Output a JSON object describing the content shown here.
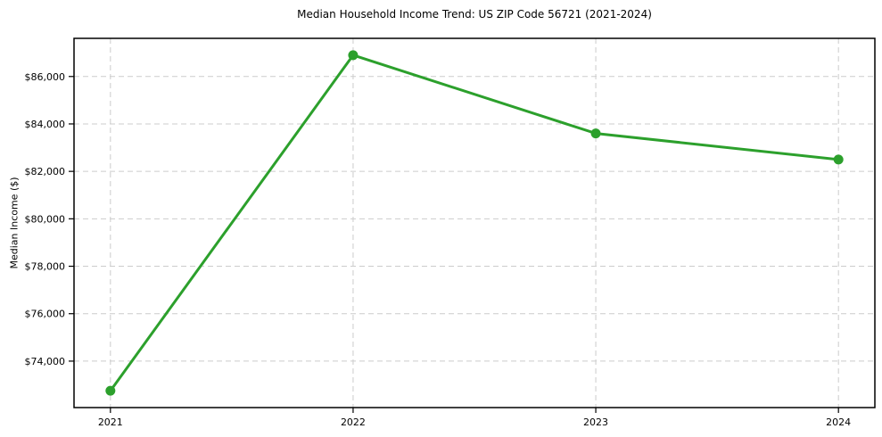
{
  "chart_data": {
    "type": "line",
    "title": "Median Household Income Trend: US ZIP Code 56721 (2021-2024)",
    "xlabel": "",
    "ylabel": "Median Income ($)",
    "x": [
      2021,
      2022,
      2023,
      2024
    ],
    "x_tick_labels": [
      "2021",
      "2022",
      "2023",
      "2024"
    ],
    "series": [
      {
        "name": "Median Household Income",
        "values": [
          72750,
          86900,
          83600,
          82500
        ]
      }
    ],
    "y_ticks": [
      74000,
      76000,
      78000,
      80000,
      82000,
      84000,
      86000
    ],
    "y_tick_labels": [
      "$74,000",
      "$76,000",
      "$78,000",
      "$80,000",
      "$82,000",
      "$84,000",
      "$86,000"
    ],
    "xlim": [
      2020.85,
      2024.15
    ],
    "ylim": [
      72042,
      87608
    ],
    "grid": true,
    "grid_style": "dashed",
    "legend": "none",
    "colors": {
      "line": "#2ca02c",
      "marker": "#2ca02c",
      "grid": "#cccccc",
      "spine": "#000000",
      "background": "#ffffff"
    }
  }
}
